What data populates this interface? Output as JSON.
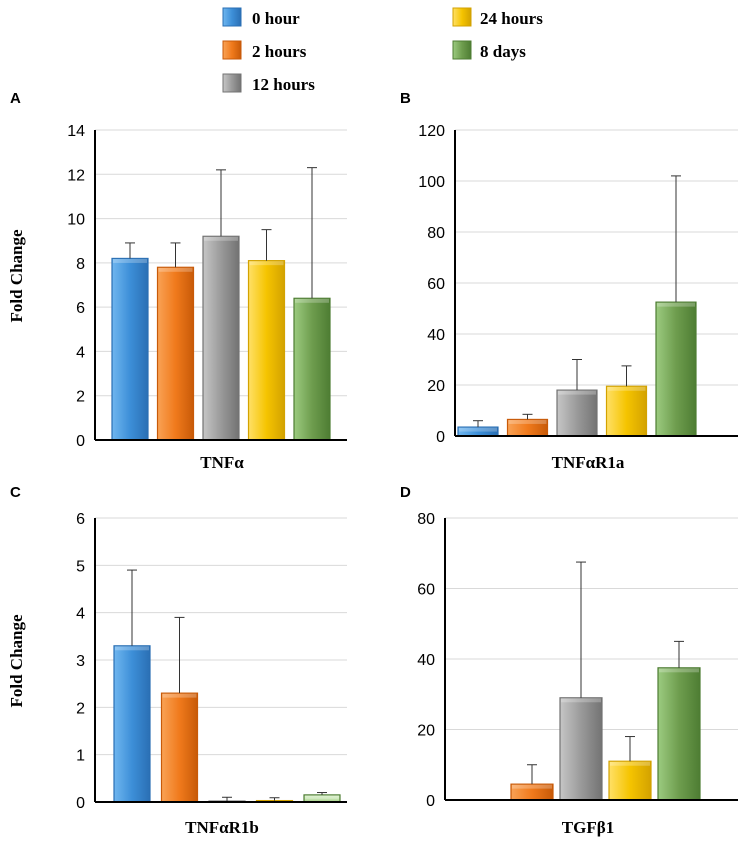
{
  "legend": [
    {
      "label": "0 hour",
      "color": "#3d8fd8"
    },
    {
      "label": "2 hours",
      "color": "#f07a1c"
    },
    {
      "label": "12 hours",
      "color": "#9a9a9a"
    },
    {
      "label": "24 hours",
      "color": "#f5c400"
    },
    {
      "label": "8 days",
      "color": "#6e9d4e"
    }
  ],
  "chart_data": [
    {
      "type": "bar",
      "panel": "A",
      "title": "",
      "xlabel": "TNFα",
      "ylabel": "Fold Change",
      "categories": [
        "0 hour",
        "2 hours",
        "12 hours",
        "24 hours",
        "8 days"
      ],
      "values": [
        8.2,
        7.8,
        9.2,
        8.1,
        6.4
      ],
      "errors": [
        0.7,
        1.1,
        3.0,
        1.4,
        5.9
      ],
      "ylim": [
        0,
        14
      ],
      "yticks": [
        0,
        2,
        4,
        6,
        8,
        10,
        12,
        14
      ]
    },
    {
      "type": "bar",
      "panel": "B",
      "title": "",
      "xlabel": "TNFαR1a",
      "ylabel": "",
      "categories": [
        "0 hour",
        "2 hours",
        "12 hours",
        "24 hours",
        "8 days"
      ],
      "values": [
        3.5,
        6.5,
        18,
        19.5,
        52.5
      ],
      "errors": [
        2.5,
        2.0,
        12,
        8.0,
        49.5
      ],
      "ylim": [
        0,
        120
      ],
      "yticks": [
        0,
        20,
        40,
        60,
        80,
        100,
        120
      ]
    },
    {
      "type": "bar",
      "panel": "C",
      "title": "",
      "xlabel": "TNFαR1b",
      "ylabel": "Fold Change",
      "categories": [
        "0 hour",
        "2 hours",
        "12 hours",
        "24 hours",
        "8 days"
      ],
      "values": [
        3.3,
        2.3,
        0.02,
        0.03,
        0.15
      ],
      "errors": [
        1.6,
        1.6,
        0.08,
        0.06,
        0.05
      ],
      "ylim": [
        0,
        6
      ],
      "yticks": [
        0,
        1,
        2,
        3,
        4,
        5,
        6
      ]
    },
    {
      "type": "bar",
      "panel": "D",
      "title": "",
      "xlabel": "TGFβ1",
      "ylabel": "",
      "categories": [
        "0 hour",
        "2 hours",
        "12 hours",
        "24 hours",
        "8 days"
      ],
      "values": [
        0,
        4.5,
        29,
        11,
        37.5
      ],
      "errors": [
        0,
        5.5,
        38.5,
        7.0,
        7.5
      ],
      "ylim": [
        0,
        80
      ],
      "yticks": [
        0,
        20,
        40,
        60,
        80
      ]
    }
  ]
}
